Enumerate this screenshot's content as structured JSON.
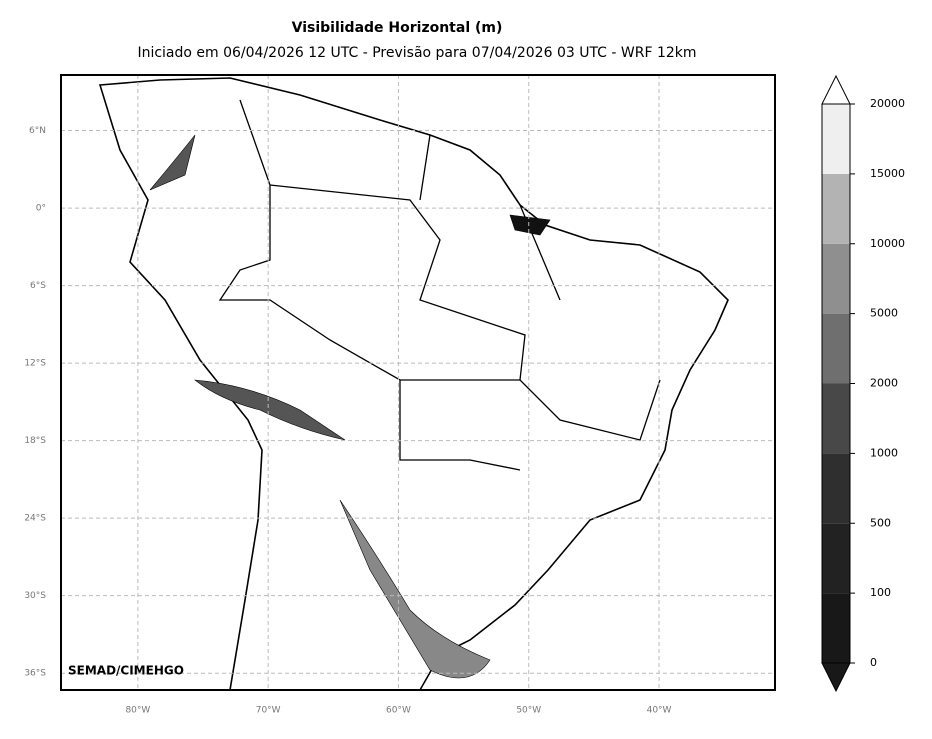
{
  "header": {
    "title": "Visibilidade Horizontal (m)",
    "subtitle": "Iniciado em 06/04/2026 12 UTC - Previsão para 07/04/2026 03 UTC - WRF 12km"
  },
  "map": {
    "lonlim": [
      -85.9,
      -31.1
    ],
    "latlim": [
      -37.3,
      10.3
    ],
    "xticks": [
      {
        "value": -80,
        "label": "80°W"
      },
      {
        "value": -70,
        "label": "70°W"
      },
      {
        "value": -60,
        "label": "60°W"
      },
      {
        "value": -50,
        "label": "50°W"
      },
      {
        "value": -40,
        "label": "40°W"
      }
    ],
    "yticks": [
      {
        "value": 6,
        "label": "6°N"
      },
      {
        "value": 0,
        "label": "0°"
      },
      {
        "value": -6,
        "label": "6°S"
      },
      {
        "value": -12,
        "label": "12°S"
      },
      {
        "value": -18,
        "label": "18°S"
      },
      {
        "value": -24,
        "label": "24°S"
      },
      {
        "value": -30,
        "label": "30°S"
      },
      {
        "value": -36,
        "label": "36°S"
      }
    ],
    "grid": true,
    "credit": "SEMAD/CIMEHGO"
  },
  "colorbar": {
    "levels": [
      0,
      100,
      500,
      1000,
      2000,
      5000,
      10000,
      15000,
      20000
    ],
    "colors": [
      "#181818",
      "#222222",
      "#2f2f2f",
      "#484848",
      "#6f6f6f",
      "#8f8f8f",
      "#b3b3b3",
      "#efefef"
    ]
  }
}
